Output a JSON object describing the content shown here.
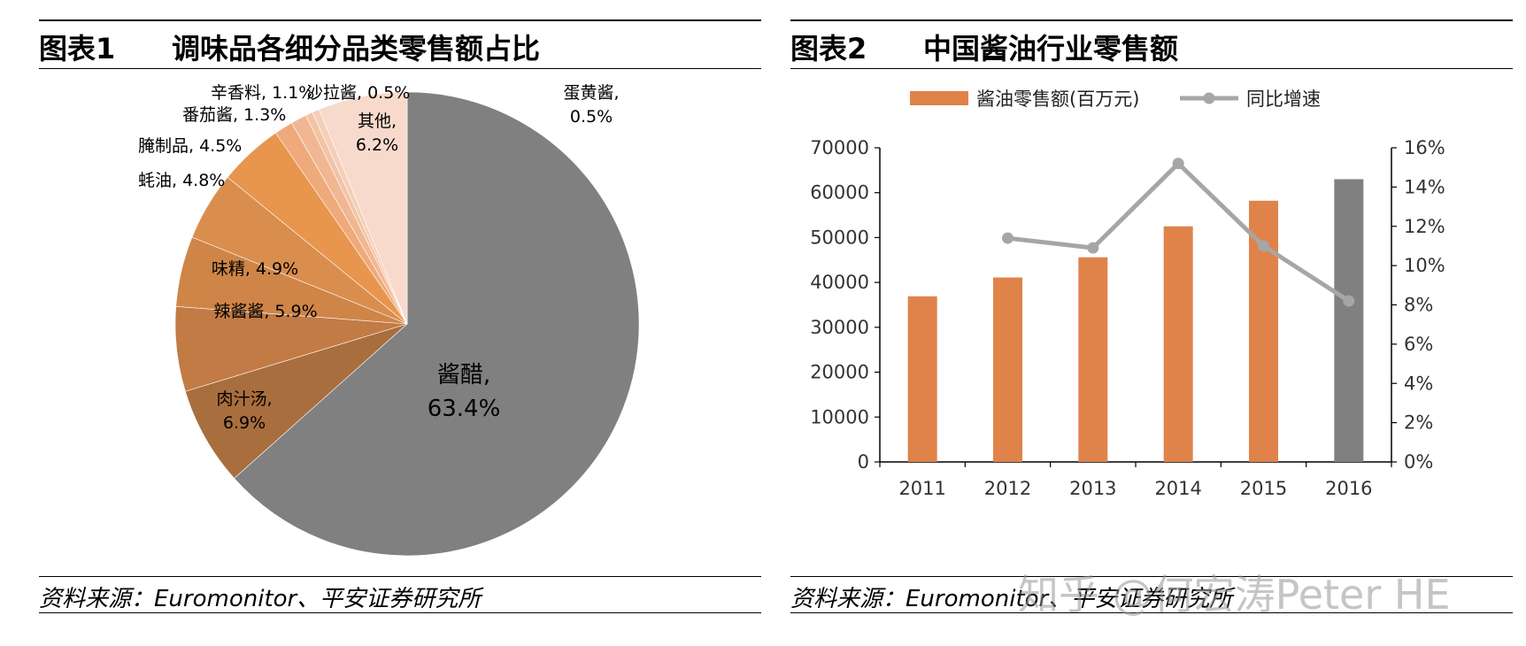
{
  "figure1": {
    "label": "图表1",
    "title": "调味品各细分品类零售额占比",
    "source": "资料来源：Euromonitor、平安证券研究所"
  },
  "figure2": {
    "label": "图表2",
    "title": "中国酱油行业零售额",
    "source": "资料来源：Euromonitor、平安证券研究所"
  },
  "watermark": "知乎 @何宏涛Peter HE",
  "chart_data": [
    {
      "type": "pie",
      "title": "调味品各细分品类零售额占比",
      "slices": [
        {
          "name": "酱醋",
          "value": 63.4,
          "label": "酱醋,",
          "pct": "63.4%",
          "color": "#808080"
        },
        {
          "name": "肉汁汤",
          "value": 6.9,
          "label": "肉汁汤,",
          "pct": "6.9%",
          "color": "#A96E3E"
        },
        {
          "name": "辣酱酱",
          "value": 5.9,
          "label": "辣酱酱,",
          "pct": "5.9%",
          "color": "#C27B45"
        },
        {
          "name": "味精",
          "value": 4.9,
          "label": "味精,",
          "pct": "4.9%",
          "color": "#CF8548"
        },
        {
          "name": "蚝油",
          "value": 4.8,
          "label": "蚝油,",
          "pct": "4.8%",
          "color": "#D98E4E"
        },
        {
          "name": "腌制品",
          "value": 4.5,
          "label": "腌制品,",
          "pct": "4.5%",
          "color": "#E8954E"
        },
        {
          "name": "番茄酱",
          "value": 1.3,
          "label": "番茄酱,",
          "pct": "1.3%",
          "color": "#EFAA7C"
        },
        {
          "name": "辛香料",
          "value": 1.1,
          "label": "辛香料,",
          "pct": "1.1%",
          "color": "#F1B792"
        },
        {
          "name": "沙拉酱",
          "value": 0.5,
          "label": "沙拉酱,",
          "pct": "0.5%",
          "color": "#F3C3A6"
        },
        {
          "name": "蛋黄酱",
          "value": 0.5,
          "label": "蛋黄酱,",
          "pct": "0.5%",
          "color": "#F5CFB8"
        },
        {
          "name": "其他",
          "value": 6.2,
          "label": "其他,",
          "pct": "6.2%",
          "color": "#F8DACC"
        }
      ]
    },
    {
      "type": "bar",
      "title": "中国酱油行业零售额",
      "categories": [
        "2011",
        "2012",
        "2013",
        "2014",
        "2015",
        "2016"
      ],
      "series": [
        {
          "name": "酱油零售额(百万元)",
          "type": "bar",
          "axis": "left",
          "values": [
            36900,
            41100,
            45600,
            52500,
            58200,
            63000
          ],
          "colors": [
            "#E0834A",
            "#E0834A",
            "#E0834A",
            "#E0834A",
            "#E0834A",
            "#808080"
          ]
        },
        {
          "name": "同比增速",
          "type": "line",
          "axis": "right",
          "color": "#A6A6A6",
          "values": [
            null,
            11.4,
            10.9,
            15.2,
            11.0,
            8.2
          ]
        }
      ],
      "ylim": [
        0,
        70000
      ],
      "yticks": [
        "0",
        "10000",
        "20000",
        "30000",
        "40000",
        "50000",
        "60000",
        "70000"
      ],
      "y2lim": [
        0,
        16
      ],
      "y2ticks": [
        "0%",
        "2%",
        "4%",
        "6%",
        "8%",
        "10%",
        "12%",
        "14%",
        "16%"
      ],
      "legend": "top"
    }
  ]
}
